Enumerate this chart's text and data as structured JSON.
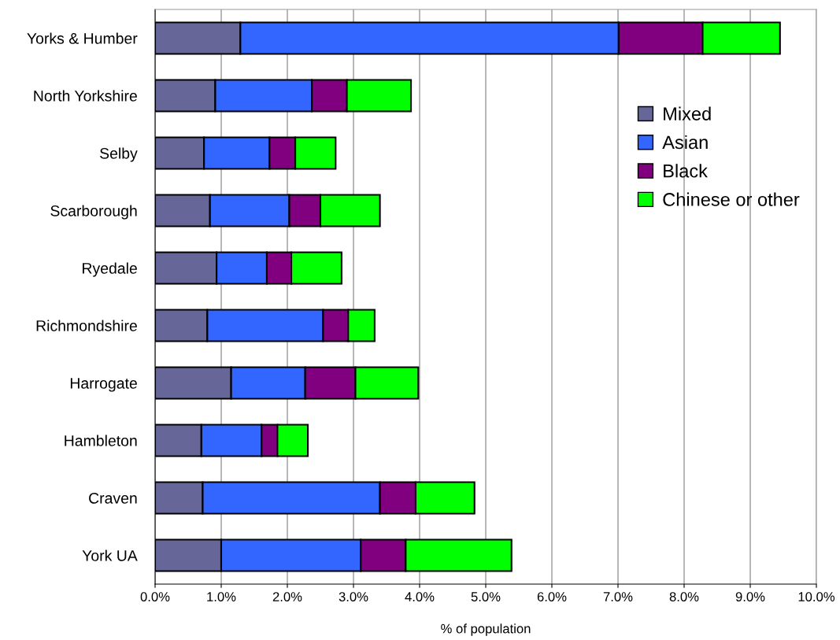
{
  "chart_data": {
    "type": "bar",
    "orientation": "horizontal",
    "stacked": true,
    "xlabel": "% of population",
    "categories": [
      "Yorks & Humber",
      "North Yorkshire",
      "Selby",
      "Scarborough",
      "Ryedale",
      "Richmondshire",
      "Harrogate",
      "Hambleton",
      "Craven",
      "York UA"
    ],
    "series": [
      {
        "name": "Mixed",
        "color": "#666699",
        "values": [
          1.29,
          0.91,
          0.74,
          0.83,
          0.93,
          0.79,
          1.15,
          0.7,
          0.72,
          1.0
        ]
      },
      {
        "name": "Asian",
        "color": "#3366ff",
        "values": [
          5.72,
          1.46,
          0.99,
          1.2,
          0.76,
          1.75,
          1.12,
          0.91,
          2.68,
          2.11
        ]
      },
      {
        "name": "Black",
        "color": "#800080",
        "values": [
          1.27,
          0.53,
          0.39,
          0.47,
          0.37,
          0.38,
          0.76,
          0.24,
          0.54,
          0.68
        ]
      },
      {
        "name": "Chinese or other",
        "color": "#00ff00",
        "values": [
          1.17,
          0.97,
          0.61,
          0.9,
          0.76,
          0.4,
          0.95,
          0.46,
          0.89,
          1.6
        ]
      }
    ],
    "xlim": [
      0,
      10
    ],
    "xticks": [
      {
        "value": 0,
        "label": "0.0%"
      },
      {
        "value": 1,
        "label": "1.0%"
      },
      {
        "value": 2,
        "label": "2.0%"
      },
      {
        "value": 3,
        "label": "3.0%"
      },
      {
        "value": 4,
        "label": "4.0%"
      },
      {
        "value": 5,
        "label": "5.0%"
      },
      {
        "value": 6,
        "label": "6.0%"
      },
      {
        "value": 7,
        "label": "7.0%"
      },
      {
        "value": 8,
        "label": "8.0%"
      },
      {
        "value": 9,
        "label": "9.0%"
      },
      {
        "value": 10,
        "label": "10.0%"
      }
    ],
    "grid": "x",
    "legend": "top right"
  }
}
